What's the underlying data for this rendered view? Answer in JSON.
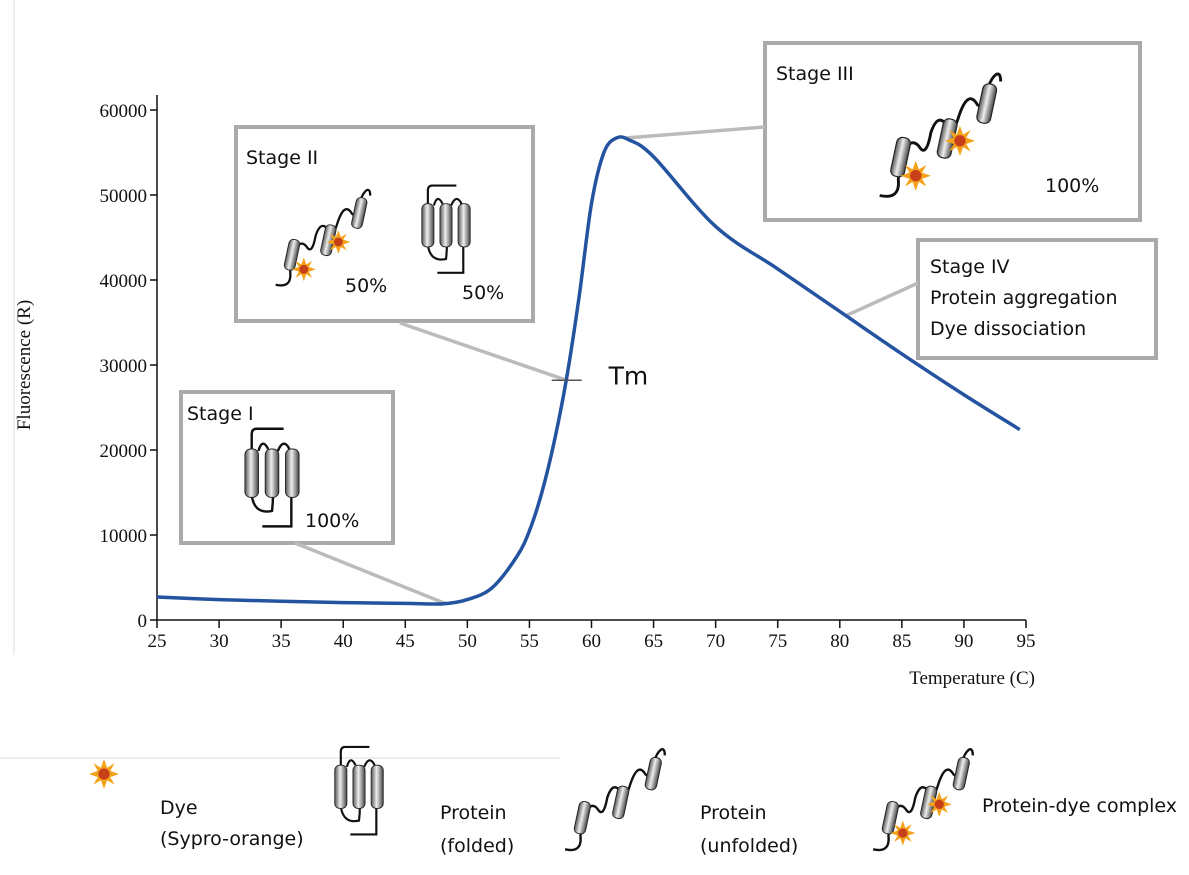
{
  "chart_data": {
    "type": "line",
    "xlabel": "Temperature (C)",
    "ylabel": "Fluorescence (R)",
    "xlim": [
      25,
      95
    ],
    "ylim": [
      0,
      60000
    ],
    "xticks": [
      25,
      30,
      35,
      40,
      45,
      50,
      55,
      60,
      65,
      70,
      75,
      80,
      85,
      90,
      95
    ],
    "yticks": [
      0,
      10000,
      20000,
      30000,
      40000,
      50000,
      60000
    ],
    "color": "#2453a0",
    "x": [
      25,
      30,
      35,
      40,
      45,
      48,
      50,
      52,
      54,
      55,
      56,
      57,
      58,
      59,
      60,
      61,
      62,
      63,
      65,
      70,
      75,
      80,
      85,
      90,
      94.5
    ],
    "values": [
      2700,
      2400,
      2200,
      2050,
      1950,
      1900,
      2400,
      3800,
      7500,
      10500,
      15000,
      21000,
      28500,
      38000,
      49000,
      55000,
      56700,
      56500,
      54500,
      46300,
      41300,
      36300,
      31300,
      26500,
      22400
    ],
    "tm": {
      "label": "Tm",
      "x": 58,
      "y": 28200
    },
    "annotations": [
      {
        "lines": [
          "Stage I",
          "100%"
        ],
        "x": 48.3,
        "y": 1900
      },
      {
        "lines": [
          "Stage II",
          "50%",
          "50%"
        ],
        "x": 58,
        "y": 28200
      },
      {
        "lines": [
          "Stage III",
          "100%"
        ],
        "x": 62.7,
        "y": 56700
      },
      {
        "lines": [
          "Stage IV",
          "Protein aggregation",
          "Dye dissociation"
        ],
        "x": 80.5,
        "y": 35800
      }
    ],
    "key_items": [
      {
        "lines": [
          "Dye",
          "(Sypro-orange)"
        ]
      },
      {
        "lines": [
          "Protein",
          "(folded)"
        ]
      },
      {
        "lines": [
          "Protein",
          "(unfolded)"
        ]
      },
      {
        "lines": [
          "Protein-dye complex"
        ]
      }
    ]
  }
}
